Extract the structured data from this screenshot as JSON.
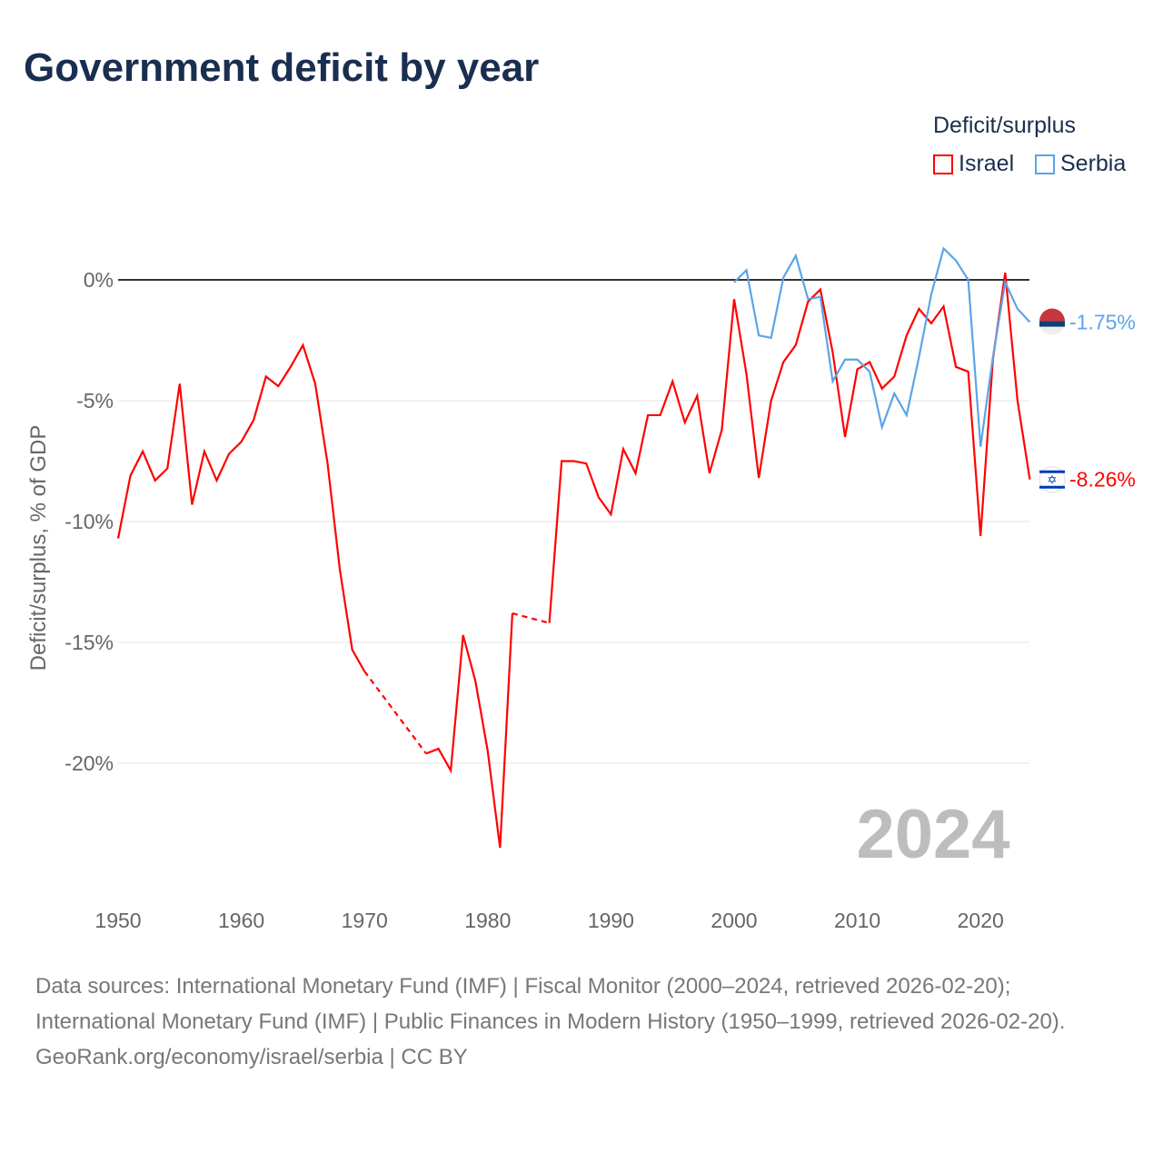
{
  "title": "Government deficit by year",
  "legend": {
    "title": "Deficit/surplus",
    "items": [
      {
        "name": "Israel",
        "color": "#ff0000"
      },
      {
        "name": "Serbia",
        "color": "#5ba4e8"
      }
    ]
  },
  "year_watermark": "2024",
  "end_labels": {
    "Israel": "-8.26%",
    "Serbia": "-1.75%"
  },
  "sources": {
    "line1": "Data sources: International Monetary Fund (IMF) | Fiscal Monitor (2000–2024, retrieved 2026-02-20); International Monetary Fund (IMF) | Public Finances in Modern History (1950–1999, retrieved 2026-02-20).",
    "line2": "GeoRank.org/economy/israel/serbia | CC BY"
  },
  "chart_data": {
    "type": "line",
    "title": "Government deficit by year",
    "xlabel": "",
    "ylabel": "Deficit/surplus, % of GDP",
    "xlim": [
      1950,
      2024
    ],
    "ylim": [
      -25,
      2.5
    ],
    "xticks": [
      1950,
      1960,
      1970,
      1980,
      1990,
      2000,
      2010,
      2020
    ],
    "xtick_labels": [
      "1950",
      "1960",
      "1970",
      "1980",
      "1990",
      "2000",
      "2010",
      "2020"
    ],
    "yticks": [
      0,
      -5,
      -10,
      -15,
      -20
    ],
    "ytick_labels": [
      "0%",
      "-5%",
      "-10%",
      "-15%",
      "-20%"
    ],
    "grid": true,
    "legend_position": "top-right",
    "series": [
      {
        "name": "Israel",
        "start_year": 1950,
        "values": [
          -10.7,
          -8.1,
          -7.1,
          -8.3,
          -7.8,
          -4.3,
          -9.3,
          -7.1,
          -8.3,
          -7.2,
          -6.7,
          -5.8,
          -4.0,
          -4.4,
          -3.6,
          -2.7,
          -4.3,
          -7.6,
          -12.0,
          -15.3,
          -16.2,
          null,
          null,
          null,
          null,
          -19.6,
          -19.4,
          -20.3,
          -14.7,
          -16.6,
          -19.5,
          -23.5,
          -13.8,
          null,
          null,
          -14.2,
          -7.5,
          -7.5,
          -7.6,
          -9.0,
          -9.7,
          -7.0,
          -8.0,
          -5.6,
          -5.6,
          -4.2,
          -5.9,
          -4.8,
          -8.0,
          -6.2,
          -0.8,
          -3.9,
          -8.2,
          -5.0,
          -3.4,
          -2.7,
          -0.9,
          -0.4,
          -3.0,
          -6.5,
          -3.7,
          -3.4,
          -4.5,
          -4.0,
          -2.3,
          -1.2,
          -1.8,
          -1.1,
          -3.6,
          -3.8,
          -10.6,
          -3.3,
          0.3,
          -5.0,
          -8.26
        ]
      },
      {
        "name": "Serbia",
        "start_year": 2000,
        "values": [
          -0.1,
          0.4,
          -2.3,
          -2.4,
          0.1,
          1.0,
          -0.8,
          -0.7,
          -4.2,
          -3.3,
          -3.3,
          -3.8,
          -6.1,
          -4.7,
          -5.6,
          -3.2,
          -0.6,
          1.3,
          0.8,
          0.0,
          -6.9,
          -3.2,
          -0.1,
          -1.2,
          -1.75
        ]
      }
    ]
  }
}
